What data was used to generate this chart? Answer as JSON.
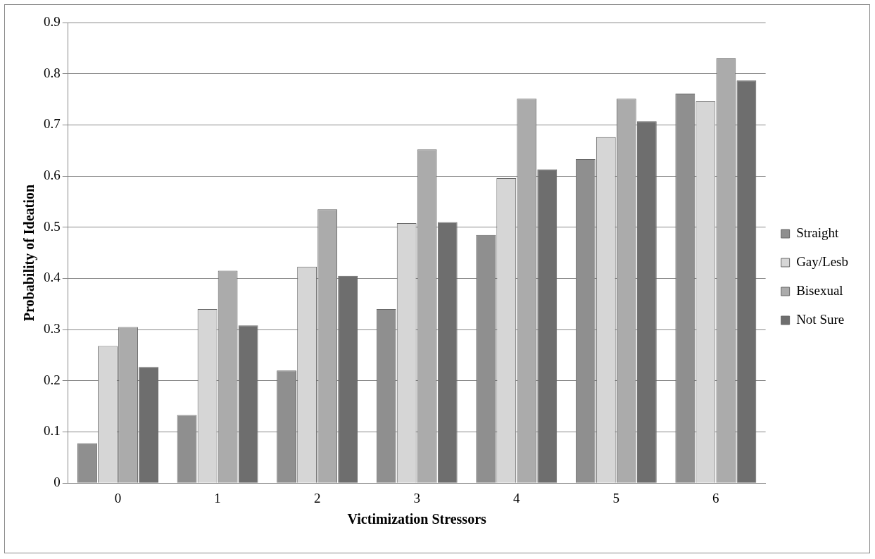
{
  "chart_data": {
    "type": "bar",
    "xlabel": "Victimization Stressors",
    "ylabel": "Probability of Ideation",
    "categories": [
      "0",
      "1",
      "2",
      "3",
      "4",
      "5",
      "6"
    ],
    "series": [
      {
        "name": "Straight",
        "color": "#8f8f8f",
        "values": [
          0.078,
          0.133,
          0.22,
          0.34,
          0.485,
          0.633,
          0.761
        ]
      },
      {
        "name": "Gay/Lesb",
        "color": "#d6d6d6",
        "values": [
          0.268,
          0.34,
          0.423,
          0.508,
          0.596,
          0.676,
          0.746
        ]
      },
      {
        "name": "Bisexual",
        "color": "#ababab",
        "values": [
          0.305,
          0.415,
          0.535,
          0.652,
          0.751,
          0.751,
          0.83
        ]
      },
      {
        "name": "Not Sure",
        "color": "#6e6e6e",
        "values": [
          0.227,
          0.308,
          0.405,
          0.51,
          0.613,
          0.707,
          0.787
        ]
      }
    ],
    "ylim": [
      0,
      0.9
    ],
    "yticks": [
      0,
      0.1,
      0.2,
      0.3,
      0.4,
      0.5,
      0.6,
      0.7,
      0.8,
      0.9
    ],
    "grid": "y",
    "legend": "right"
  }
}
